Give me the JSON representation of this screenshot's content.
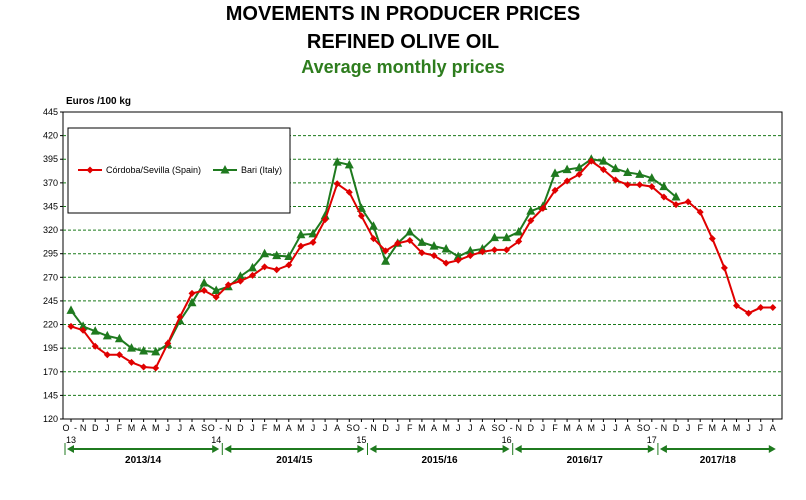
{
  "header": {
    "title_line1": "MOVEMENTS IN PRODUCER PRICES",
    "title_line2": "REFINED OLIVE OIL",
    "subtitle": "Average monthly prices"
  },
  "colors": {
    "spain": "#e00000",
    "italy": "#1f7a1f",
    "subtitle": "#2e7d1e",
    "grid": "#1a7a1a",
    "campaign_arrow": "#1f7a1f"
  },
  "chart_data": {
    "type": "line",
    "title": "MOVEMENTS IN PRODUCER PRICES",
    "ylabel": "Euros /100 kg",
    "xlabel": "",
    "ylim": [
      120,
      445
    ],
    "yticks": [
      120,
      145,
      170,
      195,
      220,
      245,
      270,
      295,
      320,
      345,
      370,
      395,
      420,
      445
    ],
    "grid": true,
    "legend_position": "top-left",
    "x_month_labels": [
      "O",
      "N",
      "D",
      "J",
      "F",
      "M",
      "A",
      "M",
      "J",
      "J",
      "A",
      "S",
      "O",
      "N",
      "D",
      "J",
      "F",
      "M",
      "A",
      "M",
      "J",
      "J",
      "A",
      "S",
      "O",
      "N",
      "D",
      "J",
      "F",
      "M",
      "A",
      "M",
      "J",
      "J",
      "A",
      "S",
      "O",
      "N",
      "D",
      "J",
      "F",
      "M",
      "A",
      "M",
      "J",
      "J",
      "A",
      "S",
      "O",
      "N",
      "D",
      "J",
      "F",
      "M",
      "A",
      "M",
      "J",
      "J",
      "A"
    ],
    "x_year_markers": [
      {
        "index": 0,
        "label": "13"
      },
      {
        "index": 12,
        "label": "14"
      },
      {
        "index": 24,
        "label": "15"
      },
      {
        "index": 36,
        "label": "16"
      },
      {
        "index": 48,
        "label": "17"
      }
    ],
    "campaigns": [
      {
        "label": "2013/14",
        "start": 0,
        "end": 12
      },
      {
        "label": "2014/15",
        "start": 13,
        "end": 24
      },
      {
        "label": "2015/16",
        "start": 25,
        "end": 36
      },
      {
        "label": "2016/17",
        "start": 37,
        "end": 48
      },
      {
        "label": "2017/18",
        "start": 49,
        "end": 58
      }
    ],
    "series": [
      {
        "name": "Córdoba/Sevilla (Spain)",
        "color": "#e00000",
        "marker": "diamond",
        "values": [
          218,
          214,
          197,
          188,
          188,
          180,
          175,
          174,
          200,
          228,
          253,
          256,
          249,
          262,
          266,
          272,
          281,
          278,
          283,
          303,
          307,
          331,
          369,
          360,
          335,
          311,
          298,
          306,
          309,
          296,
          293,
          285,
          288,
          293,
          297,
          299,
          299,
          308,
          330,
          343,
          362,
          372,
          379,
          393,
          384,
          373,
          368,
          368,
          366,
          355,
          347,
          350,
          339,
          311,
          280,
          240,
          232,
          238,
          238
        ]
      },
      {
        "name": "Bari (Italy)",
        "color": "#1f7a1f",
        "marker": "triangle",
        "values": [
          235,
          218,
          213,
          208,
          205,
          195,
          192,
          191,
          199,
          224,
          243,
          264,
          256,
          260,
          271,
          280,
          295,
          293,
          292,
          315,
          316,
          335,
          392,
          389,
          343,
          324,
          287,
          306,
          318,
          307,
          303,
          300,
          292,
          298,
          300,
          312,
          312,
          318,
          340,
          345,
          380,
          384,
          386,
          395,
          393,
          385,
          381,
          379,
          375,
          366,
          355
        ]
      }
    ]
  }
}
